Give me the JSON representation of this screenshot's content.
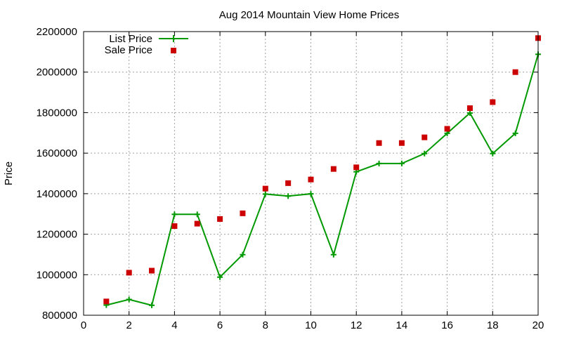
{
  "chart_data": {
    "type": "scatter",
    "title": "Aug 2014 Mountain View Home Prices",
    "xlabel": "",
    "ylabel": "Price",
    "xlim": [
      0,
      20
    ],
    "ylim": [
      800000,
      2200000
    ],
    "xticks": [
      0,
      2,
      4,
      6,
      8,
      10,
      12,
      14,
      16,
      18,
      20
    ],
    "yticks": [
      800000,
      1000000,
      1200000,
      1400000,
      1600000,
      1800000,
      2000000,
      2200000
    ],
    "grid": true,
    "legend": "top-left",
    "series": [
      {
        "name": "List Price",
        "style": "linespoints",
        "color": "#009900",
        "x": [
          1,
          2,
          3,
          4,
          5,
          6,
          7,
          8,
          9,
          10,
          11,
          12,
          13,
          14,
          15,
          16,
          17,
          18,
          19,
          20
        ],
        "y": [
          850000,
          878000,
          849000,
          1298000,
          1298000,
          988000,
          1099000,
          1398000,
          1388000,
          1399000,
          1099000,
          1508000,
          1549000,
          1549000,
          1598000,
          1698000,
          1798000,
          1598000,
          1698000,
          2088000
        ]
      },
      {
        "name": "Sale Price",
        "style": "points",
        "color": "#cc0000",
        "x": [
          1,
          2,
          3,
          4,
          5,
          6,
          7,
          8,
          9,
          10,
          11,
          12,
          13,
          14,
          15,
          16,
          17,
          18,
          19,
          20
        ],
        "y": [
          868000,
          1010000,
          1020000,
          1240000,
          1252000,
          1275000,
          1303000,
          1425000,
          1452000,
          1470000,
          1522000,
          1530000,
          1650000,
          1650000,
          1678000,
          1720000,
          1822000,
          1852000,
          2000000,
          2168000
        ]
      }
    ]
  }
}
